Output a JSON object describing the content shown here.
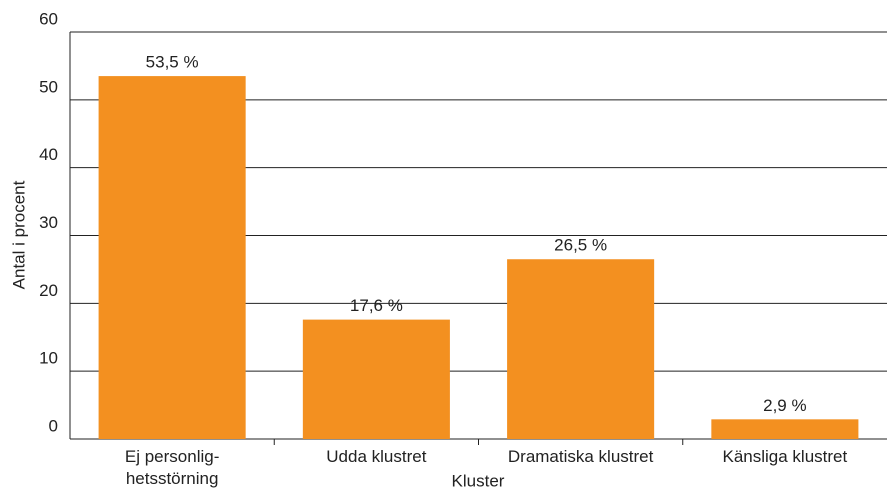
{
  "chart_data": {
    "type": "bar",
    "categories": [
      "Ej personlig-\nhetsstörning",
      "Udda klustret",
      "Dramatiska klustret",
      "Känsliga klustret"
    ],
    "values": [
      53.5,
      17.6,
      26.5,
      2.9
    ],
    "value_labels": [
      "53,5 %",
      "17,6 %",
      "26,5 %",
      "2,9 %"
    ],
    "color": "#f39020",
    "ylim": [
      0,
      60
    ],
    "yticks": [
      0,
      10,
      20,
      30,
      40,
      50,
      60
    ],
    "grid": true,
    "y_label": "Antal i procent",
    "x_label": "Kluster"
  }
}
